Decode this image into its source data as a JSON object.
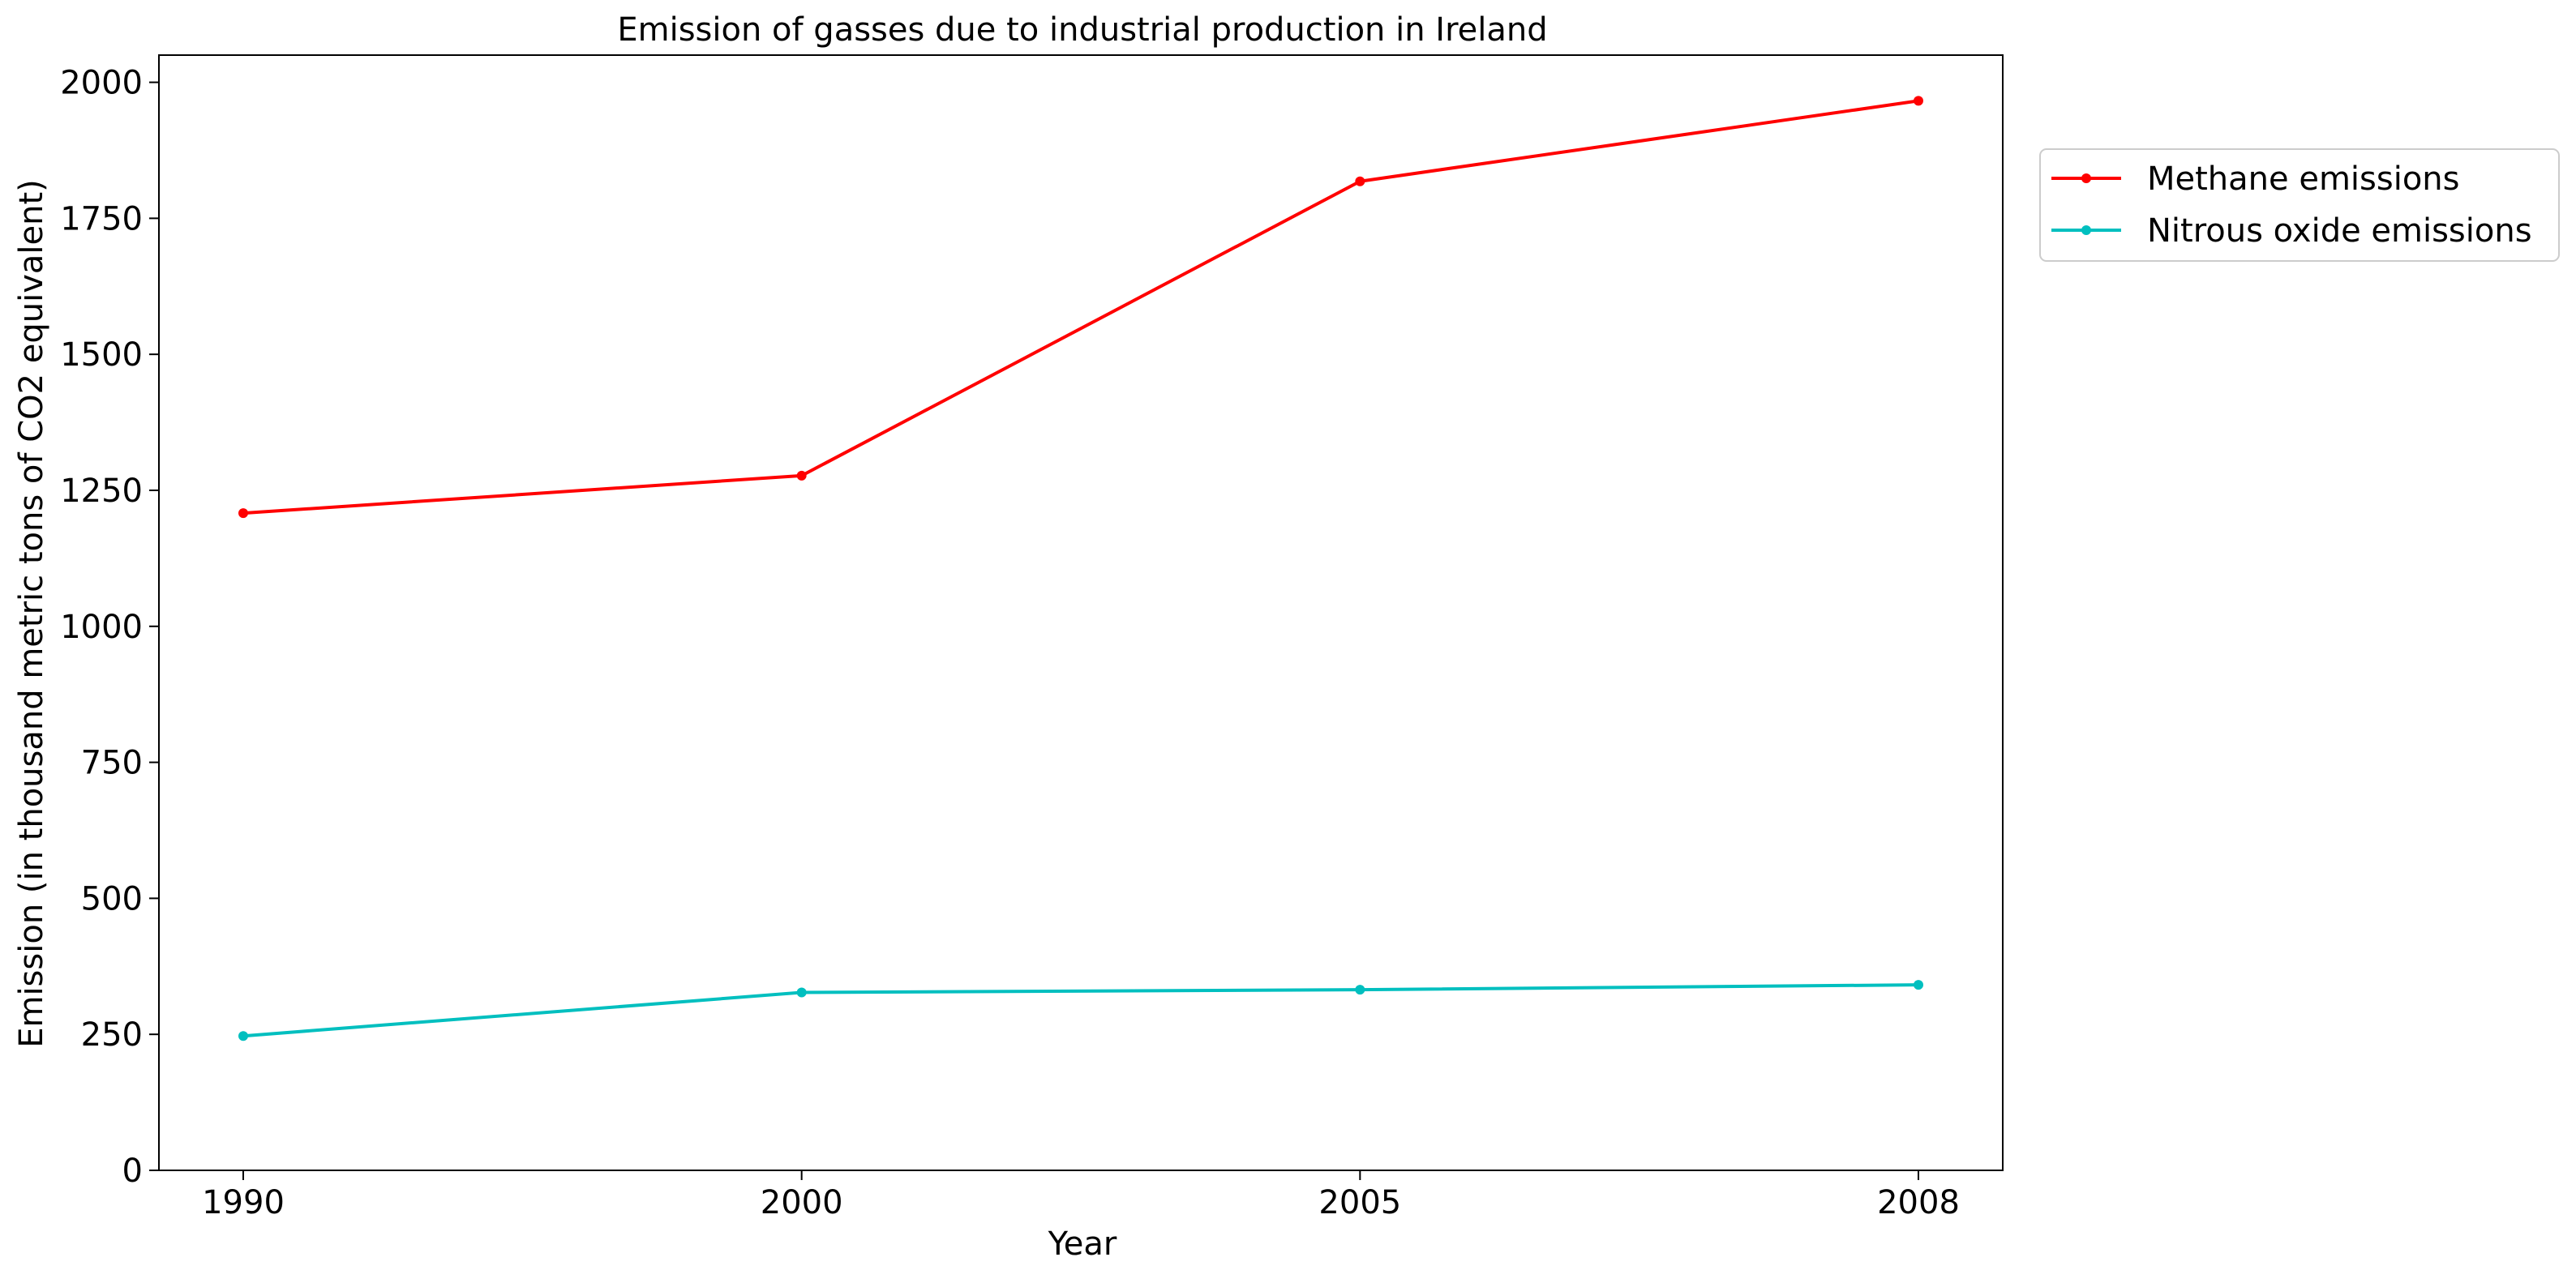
{
  "chart_data": {
    "type": "line",
    "title": "Emission of gasses due to industrial production in Ireland",
    "xlabel": "Year",
    "ylabel": "Emission (in thousand metric tons of CO2 equivalent)",
    "categories": [
      "1990",
      "2000",
      "2005",
      "2008"
    ],
    "ylim": [
      0,
      2050
    ],
    "yticks": [
      0,
      250,
      500,
      750,
      1000,
      1250,
      1500,
      1750,
      2000
    ],
    "grid": false,
    "legend_position": "outside-top-right",
    "series": [
      {
        "name": "Methane emissions",
        "color": "#ff0000",
        "values": [
          1208,
          1277,
          1818,
          1966
        ]
      },
      {
        "name": "Nitrous oxide emissions",
        "color": "#00bfbf",
        "values": [
          247,
          327,
          332,
          341
        ]
      }
    ]
  }
}
